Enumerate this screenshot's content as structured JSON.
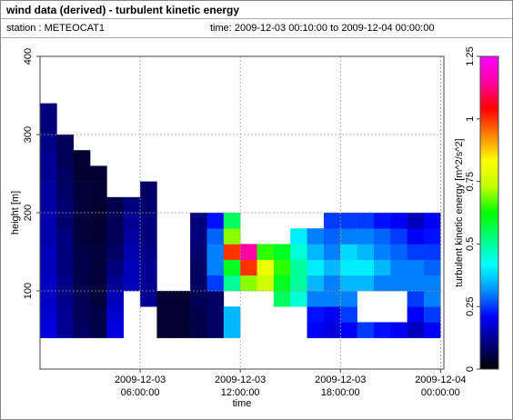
{
  "chart_data": {
    "type": "heatmap",
    "title": "wind data (derived) - turbulent kinetic energy",
    "station": "station : METEOCAT1",
    "time_range": "time: 2009-12-03 00:10:00 to 2009-12-04 00:00:00",
    "xlabel": "time",
    "ylabel": "height [m]",
    "colorbar_label": "turbulent kinetic energy [m^2/s^2]",
    "xlim": [
      0,
      24.2
    ],
    "xticks": [
      {
        "value": 6,
        "label": "2009-12-03\n06:00:00"
      },
      {
        "value": 12,
        "label": "2009-12-03\n12:00:00"
      },
      {
        "value": 18,
        "label": "2009-12-03\n18:00:00"
      },
      {
        "value": 24,
        "label": "2009-12-04\n00:00:00"
      }
    ],
    "ylim": [
      0,
      400
    ],
    "yticks": [
      100,
      200,
      300,
      400
    ],
    "zlim": [
      0,
      1.25
    ],
    "zticks": [
      0,
      0.25,
      0.5,
      0.75,
      1,
      1.25
    ],
    "colorscale": [
      "#000000",
      "#000080",
      "#0000ff",
      "#0090ff",
      "#00ffff",
      "#00ff80",
      "#00ff00",
      "#c0ff00",
      "#ffff00",
      "#ff8000",
      "#ff0000",
      "#ff00a0",
      "#ff00ff"
    ],
    "grid": true,
    "x": [
      0,
      1,
      2,
      3,
      4,
      5,
      6,
      7,
      8,
      9,
      10,
      11,
      12,
      13,
      14,
      15,
      16,
      17,
      18,
      19,
      20,
      21,
      22,
      23,
      24
    ],
    "y": [
      40,
      60,
      80,
      100,
      120,
      140,
      160,
      180,
      200,
      220,
      240,
      260,
      280,
      300,
      320,
      340
    ],
    "z": [
      [
        0.18,
        0.12,
        0.08,
        0.06,
        0.18,
        null,
        null,
        0.04,
        0.04,
        0.06,
        0.08,
        0.35,
        null,
        null,
        null,
        null,
        0.2,
        0.18,
        0.2,
        0.25,
        0.22,
        0.2,
        0.15,
        0.2
      ],
      [
        0.17,
        0.12,
        0.07,
        0.06,
        0.17,
        null,
        null,
        0.04,
        0.04,
        0.06,
        0.08,
        0.35,
        null,
        null,
        null,
        null,
        0.22,
        0.2,
        0.25,
        null,
        null,
        null,
        0.2,
        0.25
      ],
      [
        0.16,
        0.11,
        0.07,
        0.05,
        0.15,
        null,
        0.12,
        0.04,
        0.04,
        0.07,
        0.08,
        null,
        null,
        null,
        0.55,
        0.45,
        0.3,
        0.3,
        0.3,
        null,
        null,
        null,
        0.25,
        0.3
      ],
      [
        0.16,
        0.11,
        0.06,
        0.05,
        0.12,
        0.15,
        0.12,
        null,
        null,
        0.08,
        0.25,
        0.5,
        0.7,
        0.75,
        0.6,
        0.5,
        0.35,
        0.3,
        0.35,
        0.35,
        0.3,
        0.3,
        0.3,
        0.3
      ],
      [
        0.15,
        0.1,
        0.06,
        0.05,
        0.1,
        0.15,
        0.12,
        null,
        null,
        0.08,
        0.3,
        0.6,
        1.0,
        0.8,
        0.65,
        0.5,
        0.4,
        0.35,
        0.4,
        0.4,
        0.35,
        0.3,
        0.3,
        0.28
      ],
      [
        0.15,
        0.1,
        0.06,
        0.05,
        0.08,
        0.14,
        0.11,
        null,
        null,
        0.09,
        0.3,
        1.0,
        1.15,
        0.65,
        0.6,
        0.45,
        0.35,
        0.3,
        0.38,
        0.35,
        0.3,
        0.28,
        0.25,
        0.25
      ],
      [
        0.14,
        0.1,
        0.05,
        0.04,
        0.07,
        0.13,
        0.1,
        null,
        null,
        0.1,
        0.28,
        0.7,
        null,
        null,
        null,
        0.4,
        0.3,
        0.28,
        0.3,
        0.3,
        0.28,
        0.25,
        0.2,
        0.22
      ],
      [
        0.14,
        0.09,
        0.05,
        0.04,
        0.07,
        0.12,
        0.1,
        null,
        null,
        0.1,
        0.22,
        0.55,
        null,
        null,
        null,
        null,
        null,
        0.25,
        0.25,
        0.25,
        0.22,
        0.2,
        0.15,
        0.2
      ],
      [
        0.13,
        0.09,
        0.05,
        0.04,
        0.06,
        0.1,
        0.09,
        null,
        null,
        null,
        null,
        null,
        null,
        null,
        null,
        null,
        null,
        null,
        null,
        null,
        null,
        null,
        null,
        null
      ],
      [
        0.13,
        0.08,
        0.05,
        0.04,
        null,
        null,
        0.08,
        null,
        null,
        null,
        null,
        null,
        null,
        null,
        null,
        null,
        null,
        null,
        null,
        null,
        null,
        null,
        null,
        null
      ],
      [
        0.12,
        0.08,
        0.04,
        0.04,
        null,
        null,
        null,
        null,
        null,
        null,
        null,
        null,
        null,
        null,
        null,
        null,
        null,
        null,
        null,
        null,
        null,
        null,
        null,
        null
      ],
      [
        0.12,
        0.07,
        0.04,
        null,
        null,
        null,
        null,
        null,
        null,
        null,
        null,
        null,
        null,
        null,
        null,
        null,
        null,
        null,
        null,
        null,
        null,
        null,
        null,
        null
      ],
      [
        0.11,
        0.07,
        null,
        null,
        null,
        null,
        null,
        null,
        null,
        null,
        null,
        null,
        null,
        null,
        null,
        null,
        null,
        null,
        null,
        null,
        null,
        null,
        null,
        null
      ],
      [
        0.1,
        null,
        null,
        null,
        null,
        null,
        null,
        null,
        null,
        null,
        null,
        null,
        null,
        null,
        null,
        null,
        null,
        null,
        null,
        null,
        null,
        null,
        null,
        null
      ],
      [
        0.1,
        null,
        null,
        null,
        null,
        null,
        null,
        null,
        null,
        null,
        null,
        null,
        null,
        null,
        null,
        null,
        null,
        null,
        null,
        null,
        null,
        null,
        null,
        null
      ]
    ]
  }
}
